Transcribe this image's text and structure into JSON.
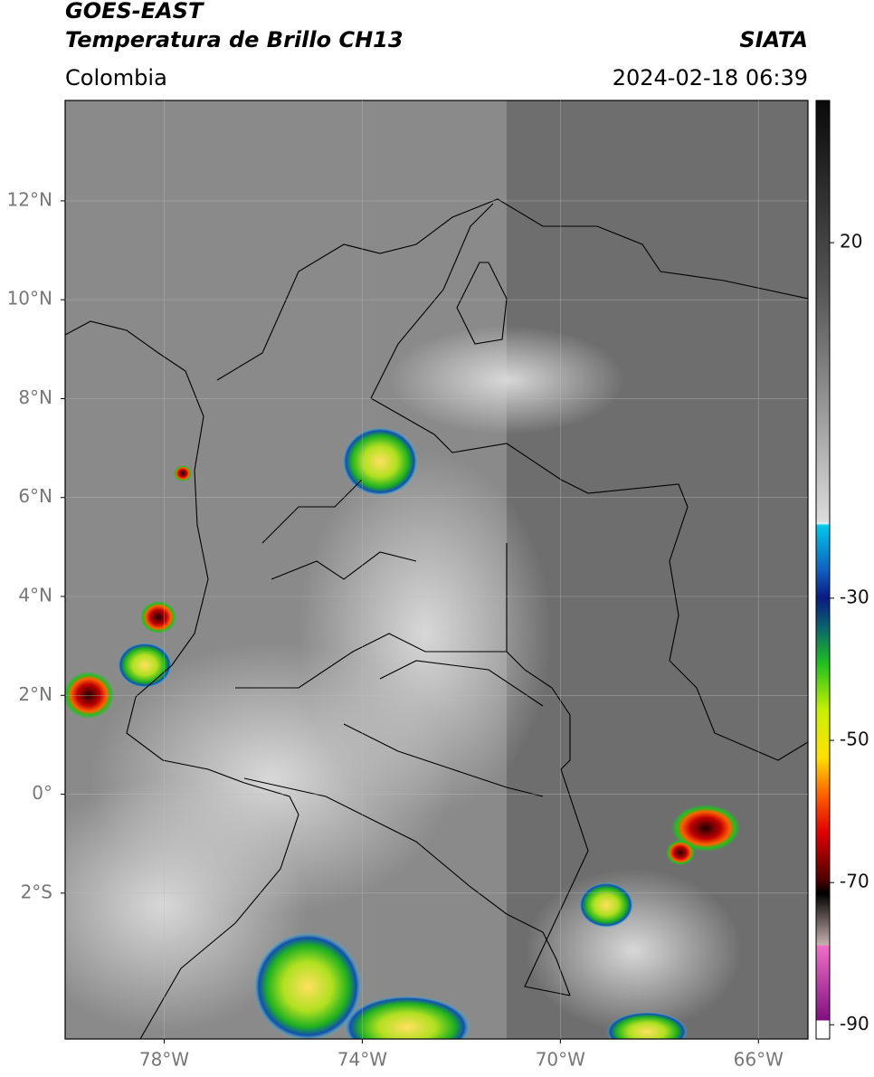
{
  "header": {
    "satellite": "GOES-EAST",
    "product": "Temperatura de Brillo CH13",
    "source": "SIATA",
    "region": "Colombia",
    "datetime": "2024-02-18 06:39"
  },
  "map": {
    "lat_range": [
      -4.95,
      14.03
    ],
    "lon_range": [
      -80,
      -65
    ],
    "lat_ticks": [
      {
        "value": 12,
        "label": "12°N"
      },
      {
        "value": 10,
        "label": "10°N"
      },
      {
        "value": 8,
        "label": "8°N"
      },
      {
        "value": 6,
        "label": "6°N"
      },
      {
        "value": 4,
        "label": "4°N"
      },
      {
        "value": 2,
        "label": "2°N"
      },
      {
        "value": 0,
        "label": "0°"
      },
      {
        "value": -2,
        "label": "2°S"
      }
    ],
    "lon_ticks": [
      {
        "value": -78,
        "label": "78°W"
      },
      {
        "value": -74,
        "label": "74°W"
      },
      {
        "value": -70,
        "label": "70°W"
      },
      {
        "value": -66,
        "label": "66°W"
      }
    ]
  },
  "colorbar": {
    "range": [
      -92,
      40
    ],
    "ticks": [
      20,
      -30,
      -50,
      -70,
      -90
    ]
  }
}
